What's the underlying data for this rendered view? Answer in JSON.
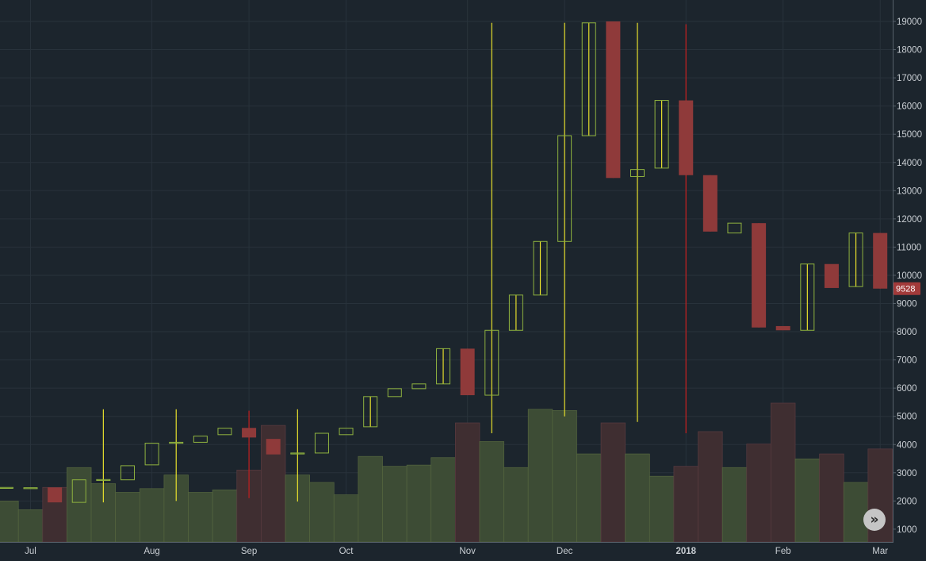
{
  "chart_data": {
    "type": "candlestick",
    "title": "",
    "ylim": [
      0,
      19400
    ],
    "y_ticks": [
      1000,
      2000,
      3000,
      4000,
      5000,
      6000,
      7000,
      8000,
      9000,
      10000,
      11000,
      12000,
      13000,
      14000,
      15000,
      16000,
      17000,
      18000,
      19000
    ],
    "x_ticks": [
      {
        "label": "Jul",
        "i": 1
      },
      {
        "label": "Aug",
        "i": 6
      },
      {
        "label": "Sep",
        "i": 10
      },
      {
        "label": "Oct",
        "i": 14
      },
      {
        "label": "Nov",
        "i": 19
      },
      {
        "label": "Dec",
        "i": 23
      },
      {
        "label": "2018",
        "i": 28,
        "bold": true
      },
      {
        "label": "Feb",
        "i": 32
      },
      {
        "label": "Mar",
        "i": 36
      }
    ],
    "last_price_label": "9528",
    "colors": {
      "up": "#8fb23f",
      "down": "#8f3a3a",
      "wick_up": "#e8e02c",
      "wick_down": "#c41f1f",
      "vol_up": "#3d4c35",
      "vol_down": "#3f2e31"
    },
    "candles": [
      {
        "o": 2480,
        "h": 2490,
        "l": 2470,
        "c": 2480
      },
      {
        "o": 2470,
        "h": 2480,
        "l": 2460,
        "c": 2470
      },
      {
        "o": 2480,
        "h": 2490,
        "l": 1950,
        "c": 1950
      },
      {
        "o": 1950,
        "h": 2750,
        "l": 1950,
        "c": 2750
      },
      {
        "o": 2740,
        "h": 5250,
        "l": 1950,
        "c": 2760
      },
      {
        "o": 2750,
        "h": 3250,
        "l": 2750,
        "c": 3250
      },
      {
        "o": 3280,
        "h": 4050,
        "l": 3280,
        "c": 4050
      },
      {
        "o": 4060,
        "h": 5250,
        "l": 2000,
        "c": 4080
      },
      {
        "o": 4080,
        "h": 4300,
        "l": 4080,
        "c": 4300
      },
      {
        "o": 4350,
        "h": 4580,
        "l": 4350,
        "c": 4580
      },
      {
        "o": 4590,
        "h": 5200,
        "l": 2100,
        "c": 4250
      },
      {
        "o": 4200,
        "h": 4250,
        "l": 3650,
        "c": 3650
      },
      {
        "o": 3680,
        "h": 5250,
        "l": 1980,
        "c": 3700
      },
      {
        "o": 3700,
        "h": 4400,
        "l": 3700,
        "c": 4400
      },
      {
        "o": 4350,
        "h": 4580,
        "l": 4350,
        "c": 4580
      },
      {
        "o": 4630,
        "h": 5700,
        "l": 4630,
        "c": 5700
      },
      {
        "o": 5700,
        "h": 5980,
        "l": 5700,
        "c": 5980
      },
      {
        "o": 5980,
        "h": 6150,
        "l": 5980,
        "c": 6150
      },
      {
        "o": 6150,
        "h": 7400,
        "l": 6150,
        "c": 7400
      },
      {
        "o": 7400,
        "h": 7400,
        "l": 5750,
        "c": 5750
      },
      {
        "o": 5750,
        "h": 18950,
        "l": 4400,
        "c": 8050
      },
      {
        "o": 8050,
        "h": 9300,
        "l": 8050,
        "c": 9300
      },
      {
        "o": 9300,
        "h": 11200,
        "l": 9300,
        "c": 11200
      },
      {
        "o": 11200,
        "h": 18950,
        "l": 5000,
        "c": 14950
      },
      {
        "o": 14950,
        "h": 18950,
        "l": 14950,
        "c": 18950
      },
      {
        "o": 19000,
        "h": 19000,
        "l": 13450,
        "c": 13450
      },
      {
        "o": 13500,
        "h": 18950,
        "l": 4800,
        "c": 13750
      },
      {
        "o": 13800,
        "h": 16200,
        "l": 13800,
        "c": 16200
      },
      {
        "o": 16200,
        "h": 18900,
        "l": 4400,
        "c": 13550
      },
      {
        "o": 13550,
        "h": 13550,
        "l": 11550,
        "c": 11550
      },
      {
        "o": 11500,
        "h": 11850,
        "l": 11500,
        "c": 11850
      },
      {
        "o": 11850,
        "h": 11850,
        "l": 8150,
        "c": 8150
      },
      {
        "o": 8200,
        "h": 8200,
        "l": 8050,
        "c": 8050
      },
      {
        "o": 8050,
        "h": 10400,
        "l": 8050,
        "c": 10400
      },
      {
        "o": 10400,
        "h": 10400,
        "l": 9550,
        "c": 9550
      },
      {
        "o": 9600,
        "h": 11500,
        "l": 9600,
        "c": 11500
      },
      {
        "o": 11500,
        "h": 11500,
        "l": 9528,
        "c": 9528
      }
    ],
    "volumes": [
      1650,
      1300,
      2200,
      3000,
      2350,
      2000,
      2150,
      2700,
      2000,
      2100,
      2900,
      4700,
      2700,
      2400,
      1900,
      3450,
      3050,
      3100,
      3400,
      4800,
      4050,
      3000,
      5350,
      5300,
      3550,
      4800,
      3550,
      2650,
      3050,
      4450,
      3000,
      3950,
      5600,
      3350,
      3550,
      2400,
      3750
    ],
    "vol_max_value": 5600
  },
  "controls": {
    "scroll_button_glyph": "»"
  }
}
